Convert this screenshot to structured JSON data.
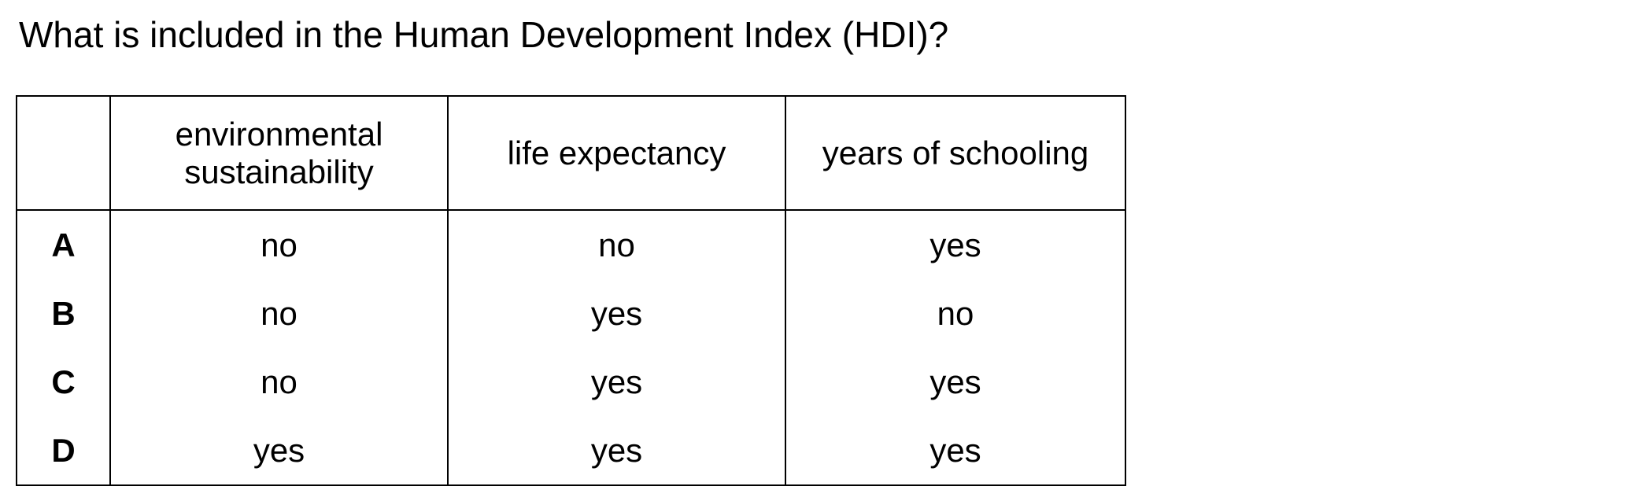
{
  "question": "What is included in the Human Development Index (HDI)?",
  "table": {
    "corner": "",
    "headers": [
      "environmental sustainability",
      "life expectancy",
      "years of schooling"
    ],
    "rows": [
      {
        "key": "A",
        "cells": [
          "no",
          "no",
          "yes"
        ]
      },
      {
        "key": "B",
        "cells": [
          "no",
          "yes",
          "no"
        ]
      },
      {
        "key": "C",
        "cells": [
          "no",
          "yes",
          "yes"
        ]
      },
      {
        "key": "D",
        "cells": [
          "yes",
          "yes",
          "yes"
        ]
      }
    ]
  }
}
